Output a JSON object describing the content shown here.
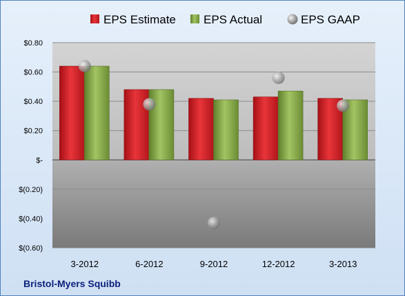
{
  "chart_data": {
    "type": "bar",
    "categories": [
      "3-2012",
      "6-2012",
      "9-2012",
      "12-2012",
      "3-2013"
    ],
    "series": [
      {
        "name": "EPS Estimate",
        "kind": "bar",
        "color": "#d9262b",
        "values": [
          0.64,
          0.48,
          0.42,
          0.43,
          0.42
        ]
      },
      {
        "name": "EPS Actual",
        "kind": "bar",
        "color": "#8db04a",
        "values": [
          0.64,
          0.48,
          0.41,
          0.47,
          0.41
        ]
      },
      {
        "name": "EPS GAAP",
        "kind": "scatter",
        "color": "#a8a8a8",
        "values": [
          0.64,
          0.38,
          -0.43,
          0.56,
          0.37
        ]
      }
    ],
    "ylim": [
      -0.6,
      0.8
    ],
    "yticks": [
      0.8,
      0.6,
      0.4,
      0.2,
      0,
      -0.2,
      -0.4,
      -0.6
    ],
    "ytick_labels": [
      "$0.80",
      "$0.60",
      "$0.40",
      "$0.20",
      "$-",
      "$(0.20)",
      "$(0.40)",
      "$(0.60)"
    ],
    "grid": true,
    "legend_position": "top"
  },
  "footer": {
    "company": "Bristol-Myers Squibb"
  }
}
